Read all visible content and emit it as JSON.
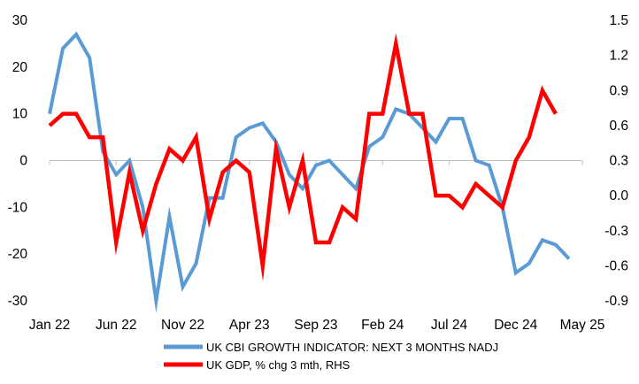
{
  "chart_data": {
    "type": "line",
    "title": "",
    "xlabel": "",
    "ylabel": "",
    "x_tick_labels": [
      "Jan 22",
      "Jun 22",
      "Nov 22",
      "Apr 23",
      "Sep 23",
      "Feb 24",
      "Jul 24",
      "Dec 24",
      "May 25"
    ],
    "y_left": {
      "lim": [
        -30,
        30
      ],
      "ticks": [
        "-30",
        "-20",
        "-10",
        "0",
        "10",
        "20",
        "30"
      ]
    },
    "y_right": {
      "lim": [
        -0.9,
        1.5
      ],
      "ticks": [
        "-0.9",
        "-0.6",
        "-0.3",
        "0.0",
        "0.3",
        "0.6",
        "0.9",
        "1.2",
        "1.5"
      ]
    },
    "grid": false,
    "legend_position": "bottom",
    "x": [
      "Jan 22",
      "Feb 22",
      "Mar 22",
      "Apr 22",
      "May 22",
      "Jun 22",
      "Jul 22",
      "Aug 22",
      "Sep 22",
      "Oct 22",
      "Nov 22",
      "Dec 22",
      "Jan 23",
      "Feb 23",
      "Mar 23",
      "Apr 23",
      "May 23",
      "Jun 23",
      "Jul 23",
      "Aug 23",
      "Sep 23",
      "Oct 23",
      "Nov 23",
      "Dec 23",
      "Jan 24",
      "Feb 24",
      "Mar 24",
      "Apr 24",
      "May 24",
      "Jun 24",
      "Jul 24",
      "Aug 24",
      "Sep 24",
      "Oct 24",
      "Nov 24",
      "Dec 24",
      "Jan 25",
      "Feb 25",
      "Mar 25",
      "Apr 25",
      "May 25"
    ],
    "series": [
      {
        "name": "UK CBI GROWTH INDICATOR: NEXT 3 MONTHS NADJ",
        "axis": "left",
        "color": "#5B9BD5",
        "values": [
          10,
          24,
          27,
          22,
          2,
          -3,
          0,
          -10,
          -30,
          -12,
          -27,
          -22,
          -8,
          -8,
          5,
          7,
          8,
          4,
          -3,
          -6,
          -1,
          0,
          -3,
          -6,
          3,
          5,
          11,
          10,
          7,
          4,
          9,
          9,
          0,
          -1,
          -10,
          -24,
          -22,
          -17,
          -18,
          -21,
          null
        ]
      },
      {
        "name": "UK GDP, % chg 3 mth, RHS",
        "axis": "right",
        "color": "#FF0000",
        "values": [
          0.6,
          0.7,
          0.7,
          0.5,
          0.5,
          -0.4,
          0.2,
          -0.3,
          0.1,
          0.4,
          0.3,
          0.5,
          -0.2,
          0.2,
          0.3,
          0.2,
          -0.6,
          0.4,
          -0.1,
          0.3,
          -0.4,
          -0.4,
          -0.1,
          -0.2,
          0.7,
          0.7,
          1.3,
          0.7,
          0.7,
          0.0,
          0.0,
          -0.1,
          0.1,
          0.0,
          -0.1,
          0.3,
          0.5,
          0.9,
          0.7,
          null,
          null
        ]
      }
    ]
  }
}
